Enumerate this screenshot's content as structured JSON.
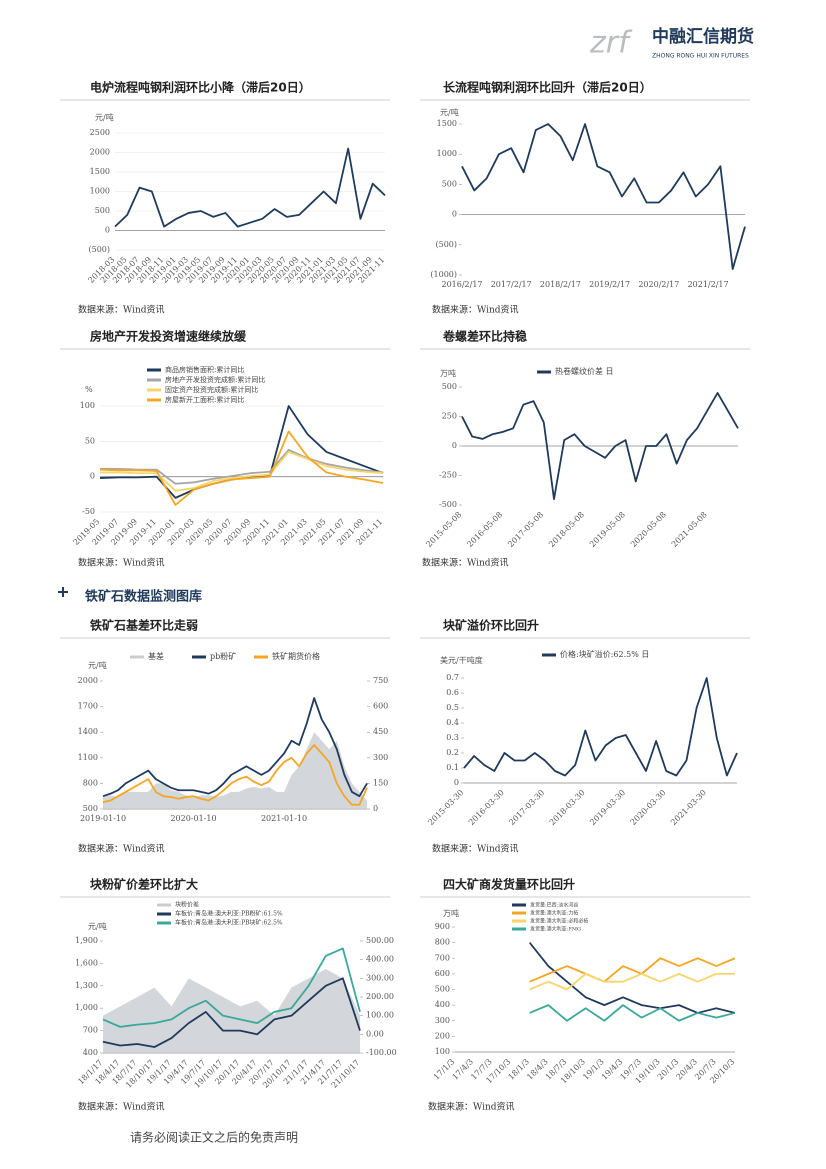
{
  "header": {
    "logo_mark": "zrf",
    "company": "中融汇信期货",
    "company_en": "ZHONG RONG HUI XIN FUTURES"
  },
  "section": "铁矿石数据监测图库",
  "footer": "请务必阅读正文之后的免责声明",
  "chart_data": [
    {
      "type": "line",
      "title": "电炉流程吨钢利润环比小降（滞后20日）",
      "y_label": "元/吨",
      "source": "数据来源：Wind资讯",
      "grid": true,
      "categories": [
        "2018-03",
        "2018-05",
        "2018-07",
        "2018-09",
        "2018-11",
        "2019-01",
        "2019-03",
        "2019-05",
        "2019-07",
        "2019-09",
        "2019-11",
        "2020-01",
        "2020-03",
        "2020-05",
        "2020-07",
        "2020-09",
        "2020-11",
        "2021-01",
        "2021-03",
        "2021-05",
        "2021-07",
        "2021-09",
        "2021-11"
      ],
      "ylim": [
        -500,
        2500
      ],
      "yticks": [
        {
          "value": -500,
          "label": "(500)"
        },
        0,
        500,
        1000,
        1500,
        2000,
        2500
      ],
      "series": [
        {
          "color": "#1f3a5c",
          "values": [
            100,
            400,
            1100,
            1000,
            100,
            300,
            450,
            500,
            350,
            450,
            100,
            200,
            300,
            550,
            350,
            400,
            700,
            1000,
            700,
            2100,
            300,
            1200,
            900
          ]
        }
      ]
    },
    {
      "type": "line",
      "title": "长流程吨钢利润环比回升（滞后20日）",
      "y_label": "元/吨",
      "source": "数据来源：Wind资讯",
      "grid": false,
      "categories": [
        "2016/2/17",
        null,
        null,
        null,
        "2017/2/17",
        null,
        null,
        null,
        "2018/2/17",
        null,
        null,
        null,
        "2019/2/17",
        null,
        null,
        null,
        "2020/2/17",
        null,
        null,
        null,
        "2021/2/17",
        null,
        null,
        null
      ],
      "ylim": [
        -1000,
        1500
      ],
      "yticks": [
        {
          "value": -1000,
          "label": "(1000)"
        },
        {
          "value": -500,
          "label": "(500)"
        },
        0,
        500,
        1000,
        1500
      ],
      "series": [
        {
          "color": "#1f3a5c",
          "values": [
            800,
            400,
            600,
            1000,
            1100,
            700,
            1400,
            1500,
            1300,
            900,
            1500,
            800,
            700,
            300,
            600,
            200,
            200,
            400,
            700,
            300,
            500,
            800,
            -900,
            -200
          ]
        }
      ]
    },
    {
      "type": "line",
      "title": "房地产开发投资增速继续放缓",
      "y_label": "%",
      "source": "数据来源：Wind资讯",
      "grid": true,
      "categories": [
        "2019-05",
        "2019-07",
        "2019-09",
        "2019-11",
        "2020-01",
        "2020-03",
        "2020-05",
        "2020-07",
        "2020-09",
        "2020-11",
        "2021-01",
        "2021-03",
        "2021-05",
        "2021-07",
        "2021-09",
        "2021-11"
      ],
      "ylim": [
        -50,
        100
      ],
      "yticks": [
        -50,
        0,
        50,
        100
      ],
      "series": [
        {
          "name": "商品房销售面积:累计同比",
          "color": "#1f3a5c",
          "values": [
            -2,
            -1,
            -1,
            0,
            -30,
            -18,
            -10,
            -4,
            0,
            1,
            100,
            60,
            35,
            25,
            15,
            5
          ]
        },
        {
          "name": "房地产开发投资完成额:累计同比",
          "color": "#a6a6a6",
          "values": [
            11,
            11,
            10,
            10,
            -10,
            -8,
            -3,
            1,
            5,
            7,
            38,
            26,
            18,
            13,
            9,
            6
          ]
        },
        {
          "name": "固定资产投资完成额:累计同比",
          "color": "#f8d56b",
          "values": [
            6,
            6,
            5,
            5,
            -20,
            -16,
            -6,
            -2,
            1,
            3,
            35,
            25,
            15,
            10,
            7,
            5
          ]
        },
        {
          "name": "房屋新开工面积:累计同比",
          "color": "#f5a623",
          "values": [
            10,
            9,
            9,
            8,
            -40,
            -18,
            -10,
            -4,
            -2,
            0,
            64,
            28,
            6,
            0,
            -4,
            -9
          ]
        }
      ]
    },
    {
      "type": "line",
      "title": "卷螺差环比持稳",
      "y_label": "万吨",
      "source": "数据来源：Wind资讯",
      "grid": false,
      "categories": [
        "2015-05-08",
        null,
        null,
        null,
        "2016-05-08",
        null,
        null,
        null,
        "2017-05-08",
        null,
        null,
        null,
        "2018-05-08",
        null,
        null,
        null,
        "2019-05-08",
        null,
        null,
        null,
        "2020-05-08",
        null,
        null,
        null,
        "2021-05-08",
        null,
        null,
        null
      ],
      "ylim": [
        -500,
        500
      ],
      "yticks": [
        -500,
        -250,
        0,
        250,
        500
      ],
      "series": [
        {
          "name": "热卷螺纹价差 日",
          "color": "#1f3a5c",
          "values": [
            250,
            80,
            60,
            100,
            120,
            150,
            350,
            380,
            200,
            -450,
            50,
            100,
            0,
            -50,
            -100,
            0,
            50,
            -300,
            0,
            0,
            100,
            -150,
            50,
            150,
            300,
            450,
            300,
            150
          ]
        }
      ]
    },
    {
      "type": "line",
      "title": "铁矿石基差环比走弱",
      "y_label": "元/吨",
      "source": "数据来源：Wind资讯",
      "grid": false,
      "categories": [
        "2019-01-10",
        null,
        null,
        null,
        null,
        null,
        null,
        null,
        null,
        null,
        null,
        null,
        "2020-01-10",
        null,
        null,
        null,
        null,
        null,
        null,
        null,
        null,
        null,
        null,
        null,
        "2021-01-10",
        null,
        null,
        null,
        null,
        null,
        null,
        null,
        null,
        null,
        null,
        null
      ],
      "ylim": [
        500,
        2000
      ],
      "yticks": [
        500,
        800,
        1100,
        1400,
        1700,
        2000
      ],
      "y2lim": [
        0,
        750
      ],
      "y2ticks": [
        0,
        150,
        300,
        450,
        600,
        750
      ],
      "series": [
        {
          "name": "基差",
          "type": "area",
          "axis": "y2",
          "color": "#c8ccd2",
          "values": [
            70,
            80,
            70,
            100,
            100,
            100,
            100,
            150,
            150,
            110,
            100,
            80,
            70,
            80,
            80,
            70,
            80,
            100,
            100,
            120,
            130,
            120,
            130,
            100,
            100,
            200,
            250,
            350,
            450,
            400,
            350,
            400,
            250,
            150,
            100,
            50
          ]
        },
        {
          "name": "pb粉矿",
          "color": "#1f3a5c",
          "values": [
            650,
            680,
            720,
            800,
            850,
            900,
            950,
            850,
            800,
            750,
            720,
            720,
            720,
            700,
            680,
            720,
            800,
            900,
            950,
            1000,
            950,
            900,
            950,
            1050,
            1150,
            1300,
            1250,
            1500,
            1800,
            1550,
            1400,
            1200,
            900,
            700,
            650,
            800
          ]
        },
        {
          "name": "铁矿期货价格",
          "color": "#f5a623",
          "values": [
            580,
            600,
            650,
            700,
            750,
            800,
            850,
            700,
            650,
            640,
            620,
            640,
            650,
            620,
            600,
            650,
            720,
            800,
            850,
            880,
            820,
            780,
            820,
            950,
            1050,
            1100,
            1000,
            1150,
            1250,
            1150,
            1050,
            800,
            650,
            550,
            550,
            750
          ]
        }
      ]
    },
    {
      "type": "line",
      "title": "块矿溢价环比回升",
      "y_label": "美元/干吨度",
      "source": "数据来源：Wind资讯",
      "grid": false,
      "categories": [
        "2015-03-30",
        null,
        null,
        null,
        "2016-03-30",
        null,
        null,
        null,
        "2017-03-30",
        null,
        null,
        null,
        "2018-03-30",
        null,
        null,
        null,
        "2019-03-30",
        null,
        null,
        null,
        "2020-03-30",
        null,
        null,
        null,
        "2021-03-30",
        null,
        null,
        null
      ],
      "ylim": [
        0,
        0.7
      ],
      "yticks": [
        0,
        0.1,
        0.2,
        0.3,
        0.4,
        0.5,
        0.6,
        0.7
      ],
      "series": [
        {
          "name": "价格:块矿溢价:62.5% 日",
          "color": "#1f3a5c",
          "values": [
            0.1,
            0.18,
            0.12,
            0.08,
            0.2,
            0.15,
            0.15,
            0.2,
            0.15,
            0.08,
            0.05,
            0.12,
            0.35,
            0.15,
            0.25,
            0.3,
            0.32,
            0.2,
            0.08,
            0.28,
            0.08,
            0.05,
            0.15,
            0.5,
            0.7,
            0.3,
            0.05,
            0.2
          ]
        }
      ]
    },
    {
      "type": "line",
      "title": "块粉矿价差环比扩大",
      "y_label": "元/吨",
      "source": "数据来源：Wind资讯",
      "grid": false,
      "categories": [
        "18/1/17",
        "18/4/17",
        "18/7/17",
        "18/10/17",
        "19/1/17",
        "19/4/17",
        "19/7/17",
        "19/10/17",
        "20/1/17",
        "20/4/17",
        "20/7/17",
        "20/10/17",
        "21/1/17",
        "21/4/17",
        "21/7/17",
        "21/10/17"
      ],
      "ylim": [
        400,
        1900
      ],
      "yticks": [
        {
          "value": 400,
          "label": "400"
        },
        {
          "value": 700,
          "label": "700"
        },
        {
          "value": 1000,
          "label": "1,000"
        },
        {
          "value": 1300,
          "label": "1,300"
        },
        {
          "value": 1600,
          "label": "1,600"
        },
        {
          "value": 1900,
          "label": "1,900"
        }
      ],
      "y2lim": [
        -100,
        500
      ],
      "y2ticks": [
        {
          "value": -100,
          "label": "-100.00"
        },
        {
          "value": 0,
          "label": "0.00"
        },
        {
          "value": 100,
          "label": "100.00"
        },
        {
          "value": 200,
          "label": "200.00"
        },
        {
          "value": 300,
          "label": "300.00"
        },
        {
          "value": 400,
          "label": "400.00"
        },
        {
          "value": 500,
          "label": "500.00"
        }
      ],
      "series": [
        {
          "name": "块粉价差",
          "type": "area",
          "axis": "y2",
          "color": "#c8ccd2",
          "values": [
            100,
            150,
            200,
            250,
            150,
            300,
            250,
            200,
            150,
            180,
            100,
            250,
            300,
            350,
            300,
            100
          ]
        },
        {
          "name": "车板价:青岛港:澳大利亚:PB粉矿:61.5%",
          "color": "#1f3a5c",
          "values": [
            550,
            500,
            520,
            480,
            600,
            800,
            950,
            700,
            700,
            650,
            850,
            900,
            1100,
            1300,
            1400,
            700
          ]
        },
        {
          "name": "车板价:青岛港:澳大利亚:PB块矿:62.5%",
          "color": "#3aa89a",
          "values": [
            850,
            750,
            780,
            800,
            850,
            1000,
            1100,
            900,
            850,
            800,
            950,
            1000,
            1300,
            1700,
            1800,
            950
          ]
        }
      ]
    },
    {
      "type": "line",
      "title": "四大矿商发货量环比回升",
      "y_label": "万吨",
      "source": "数据来源：Wind资讯",
      "grid": false,
      "categories": [
        "17/1/3",
        "17/4/3",
        "17/7/3",
        "17/10/3",
        "18/1/3",
        "18/4/3",
        "18/7/3",
        "18/10/3",
        "19/1/3",
        "19/4/3",
        "19/7/3",
        "19/10/3",
        "20/1/3",
        "20/4/3",
        "20/7/3",
        "20/10/3"
      ],
      "ylim": [
        100,
        900
      ],
      "yticks": [
        100,
        200,
        300,
        400,
        500,
        600,
        700,
        800,
        900
      ],
      "series": [
        {
          "name": "发货量:巴西:淡水河谷",
          "color": "#1f3a5c",
          "values": [
            null,
            null,
            null,
            null,
            800,
            650,
            550,
            450,
            400,
            450,
            400,
            380,
            400,
            350,
            380,
            350
          ]
        },
        {
          "name": "发货量:澳大利亚:力拓",
          "color": "#f5a623",
          "values": [
            null,
            null,
            null,
            null,
            550,
            600,
            650,
            600,
            550,
            650,
            600,
            700,
            650,
            700,
            650,
            700
          ]
        },
        {
          "name": "发货量:澳大利亚:必和必拓",
          "color": "#f8d56b",
          "values": [
            null,
            null,
            null,
            null,
            500,
            550,
            500,
            600,
            550,
            550,
            600,
            550,
            600,
            550,
            600,
            600
          ]
        },
        {
          "name": "发货量:澳大利亚:FMG",
          "color": "#3aa89a",
          "values": [
            null,
            null,
            null,
            null,
            350,
            400,
            300,
            380,
            300,
            400,
            320,
            380,
            300,
            350,
            320,
            350
          ]
        }
      ]
    }
  ]
}
